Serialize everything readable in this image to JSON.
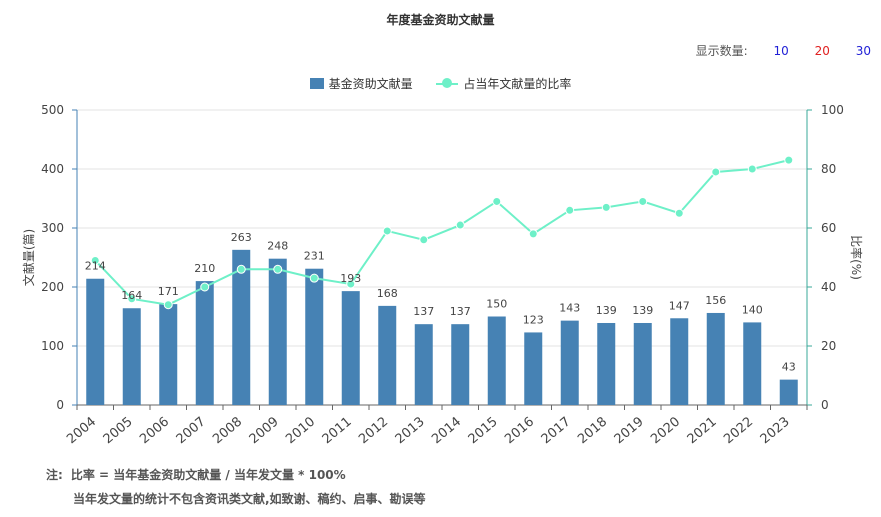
{
  "title": "年度基金资助文献量",
  "display_count": {
    "label": "显示数量:",
    "options": [
      {
        "label": "10",
        "color": "#1f1fd6"
      },
      {
        "label": "20",
        "color": "#e02020"
      },
      {
        "label": "30",
        "color": "#1f1fd6"
      }
    ]
  },
  "notes": {
    "prefix": "注:",
    "line1": "比率 = 当年基金资助文献量 / 当年发文量 * 100%",
    "line2": "当年发文量的统计不包含资讯类文献,如致谢、稿约、启事、勘误等"
  },
  "colors": {
    "bar": "#4682b4",
    "line": "#6ef0c8",
    "axis_left": "#4682b4",
    "axis_right": "#3aa89a"
  },
  "chart_data": {
    "type": "bar",
    "categories": [
      "2004",
      "2005",
      "2006",
      "2007",
      "2008",
      "2009",
      "2010",
      "2011",
      "2012",
      "2013",
      "2014",
      "2015",
      "2016",
      "2017",
      "2018",
      "2019",
      "2020",
      "2021",
      "2022",
      "2023"
    ],
    "series": [
      {
        "name": "基金资助文献量",
        "type": "bar",
        "axis": "left",
        "values": [
          214,
          164,
          171,
          210,
          263,
          248,
          231,
          193,
          168,
          137,
          137,
          150,
          123,
          143,
          139,
          139,
          147,
          156,
          140,
          43
        ]
      },
      {
        "name": "占当年文献量的比率",
        "type": "line",
        "axis": "right",
        "values": [
          49,
          36,
          34,
          40,
          46,
          46,
          43,
          41,
          59,
          56,
          61,
          69,
          58,
          66,
          67,
          69,
          65,
          79,
          80,
          83
        ]
      }
    ],
    "ylabel": "文献量(篇)",
    "ylabel_right": "比率(%)",
    "ylim": [
      0,
      500
    ],
    "ylim_right": [
      0,
      100
    ],
    "yticks": [
      0,
      100,
      200,
      300,
      400,
      500
    ],
    "yticks_right": [
      0,
      20,
      40,
      60,
      80,
      100
    ],
    "grid": true,
    "legend_position": "top-center"
  }
}
